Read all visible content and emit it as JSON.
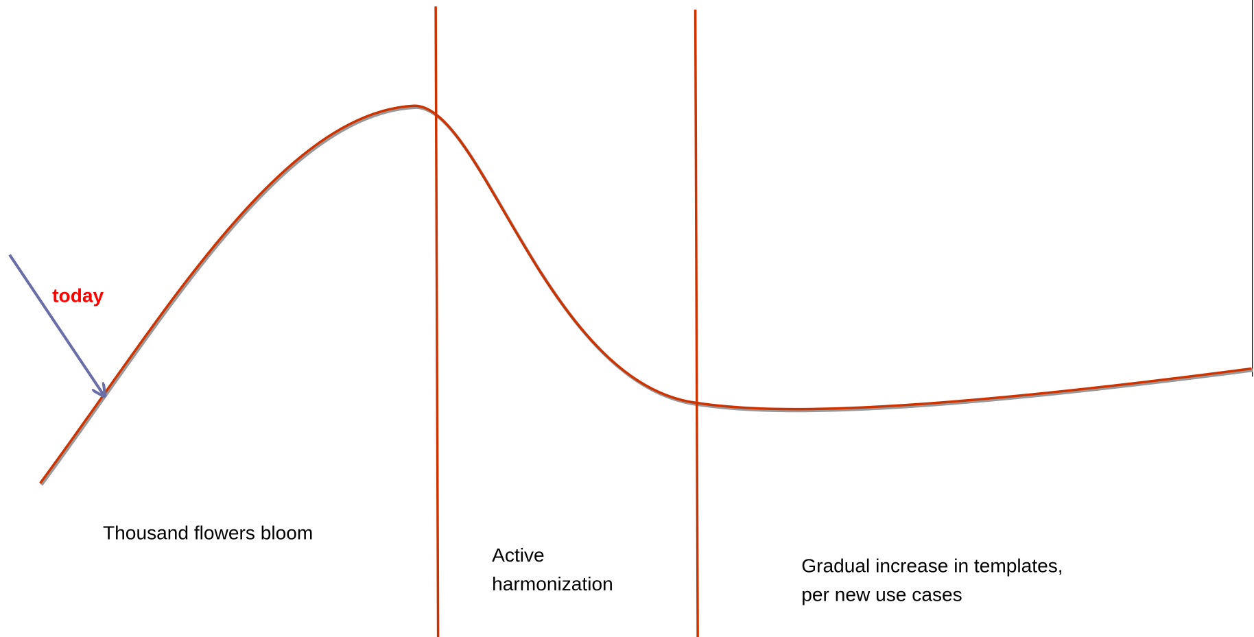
{
  "annotation": "today",
  "phases": [
    {
      "lines": [
        "Thousand flowers bloom"
      ]
    },
    {
      "lines": [
        "Active",
        "harmonization"
      ]
    },
    {
      "lines": [
        "Gradual increase in templates,",
        "per new use cases"
      ]
    }
  ]
}
